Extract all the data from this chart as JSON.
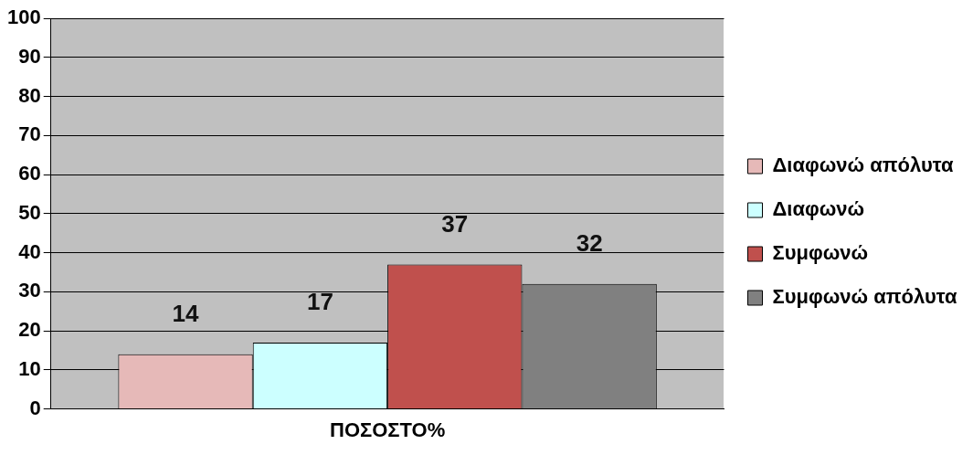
{
  "chart_data": {
    "type": "bar",
    "categories": [
      "ΠΟΣΟΣΤΟ%"
    ],
    "series": [
      {
        "name": "Διαφωνώ απόλυτα",
        "color": "#e6b9b8",
        "values": [
          14
        ]
      },
      {
        "name": "Διαφωνώ",
        "color": "#ccffff",
        "values": [
          17
        ]
      },
      {
        "name": "Συμφωνώ",
        "color": "#c0504d",
        "values": [
          37
        ]
      },
      {
        "name": "Συμφωνώ απόλυτα",
        "color": "#808080",
        "values": [
          32
        ]
      }
    ],
    "ylim": [
      0,
      100
    ],
    "yticks": [
      0,
      10,
      20,
      30,
      40,
      50,
      60,
      70,
      80,
      90,
      100
    ],
    "grid": "y",
    "legend": "right",
    "data_labels": true
  }
}
